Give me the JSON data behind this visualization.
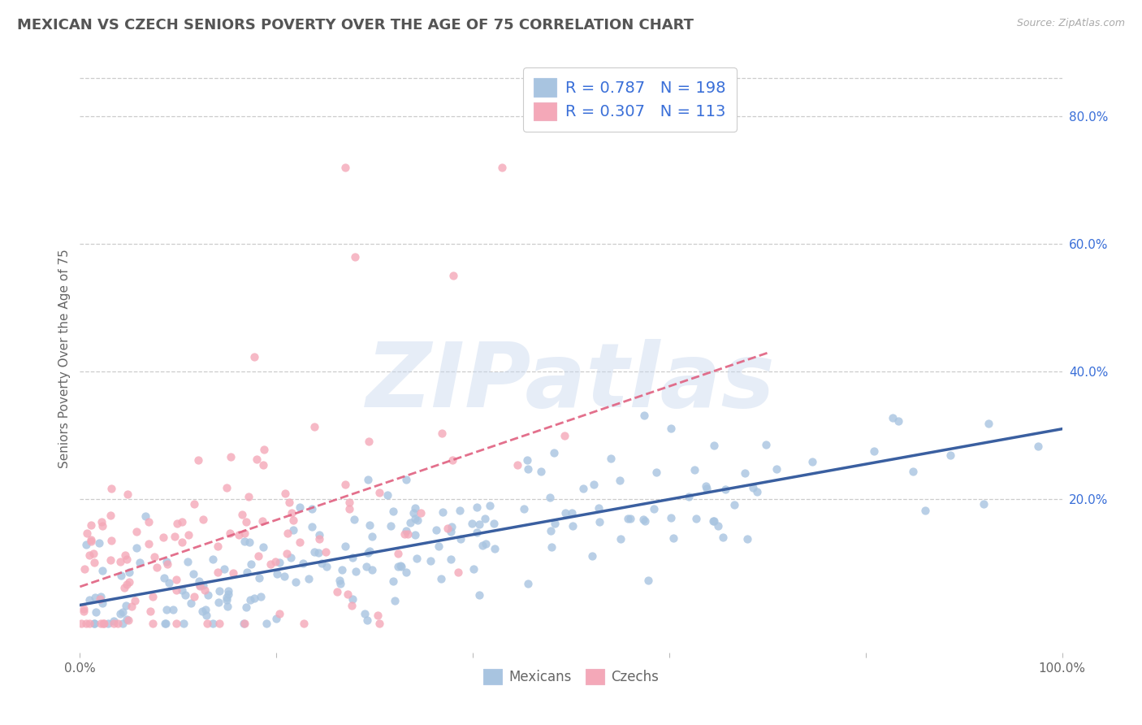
{
  "title": "MEXICAN VS CZECH SENIORS POVERTY OVER THE AGE OF 75 CORRELATION CHART",
  "source": "Source: ZipAtlas.com",
  "ylabel": "Seniors Poverty Over the Age of 75",
  "watermark": "ZIPatlas",
  "xlim": [
    0.0,
    1.0
  ],
  "ylim": [
    -0.04,
    0.88
  ],
  "y_ticks_right": [
    0.2,
    0.4,
    0.6,
    0.8
  ],
  "y_tick_labels_right": [
    "20.0%",
    "40.0%",
    "60.0%",
    "80.0%"
  ],
  "mexicans_R": 0.787,
  "mexicans_N": 198,
  "czechs_R": 0.307,
  "czechs_N": 113,
  "mexican_color": "#a8c4e0",
  "czech_color": "#f4a8b8",
  "mexican_line_color": "#3a5fa0",
  "czech_line_color": "#e06080",
  "background_color": "#ffffff",
  "grid_color": "#cccccc",
  "title_fontsize": 13,
  "axis_label_fontsize": 11,
  "tick_fontsize": 11,
  "legend_fontsize": 14,
  "watermark_color": "#c8d8ee",
  "watermark_alpha": 0.45,
  "legend_text_color": "#3a6fd8"
}
